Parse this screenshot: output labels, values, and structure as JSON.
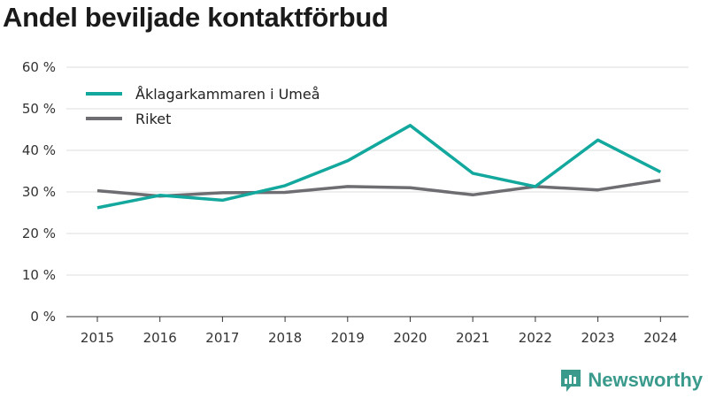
{
  "title": "Andel beviljade kontaktförbud",
  "brand": {
    "name": "Newsworthy",
    "color": "#3a9a8c",
    "icon": "bar-chart-logo-icon"
  },
  "chart_data": {
    "type": "line",
    "title": "Andel beviljade kontaktförbud",
    "xlabel": "",
    "ylabel": "",
    "x": [
      "2015",
      "2016",
      "2017",
      "2018",
      "2019",
      "2020",
      "2021",
      "2022",
      "2023",
      "2024"
    ],
    "ylim": [
      0,
      60
    ],
    "yticks": [
      0,
      10,
      20,
      30,
      40,
      50,
      60
    ],
    "ytick_labels": [
      "0 %",
      "10 %",
      "20 %",
      "30 %",
      "40 %",
      "50 %",
      "60 %"
    ],
    "grid": true,
    "legend_position": "top-left",
    "series": [
      {
        "name": "Åklagarkammaren i Umeå",
        "color": "#13a89e",
        "values": [
          26.2,
          29.2,
          28.0,
          31.5,
          37.5,
          46.0,
          34.5,
          31.3,
          42.5,
          34.8
        ]
      },
      {
        "name": "Riket",
        "color": "#6d6d72",
        "values": [
          30.3,
          29.0,
          29.8,
          29.9,
          31.3,
          31.0,
          29.3,
          31.3,
          30.5,
          32.8
        ]
      }
    ]
  }
}
